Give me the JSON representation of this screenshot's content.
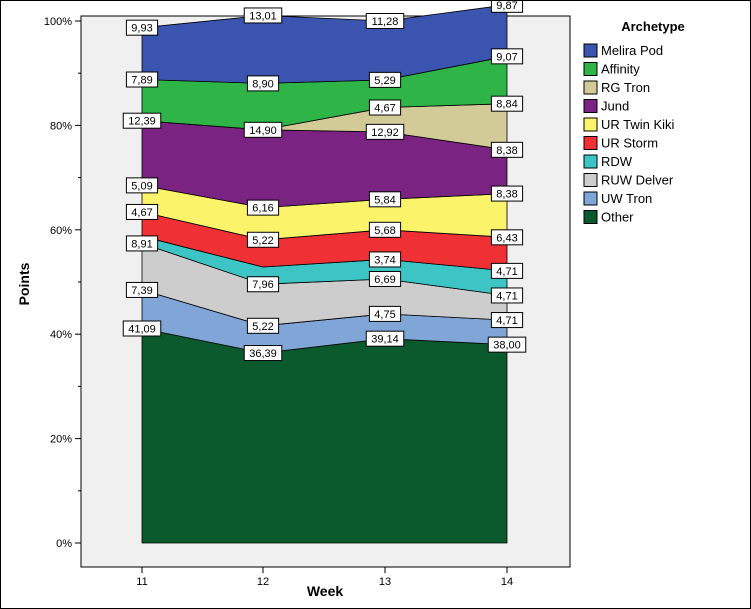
{
  "chart_data": {
    "type": "area",
    "stacked": true,
    "percent": true,
    "title": "",
    "xlabel": "Week",
    "ylabel": "Points",
    "x": [
      "11",
      "12",
      "13",
      "14"
    ],
    "ylim": [
      0,
      100
    ],
    "yticks": [
      "0%",
      "20%",
      "40%",
      "60%",
      "80%",
      "100%"
    ],
    "legend_title": "Archetype",
    "legend_position": "right",
    "series": [
      {
        "name": "Other",
        "color": "#0b5a2e",
        "values": [
          41.09,
          36.39,
          39.14,
          38.0
        ],
        "labels": [
          "41,09",
          "36,39",
          "39,14",
          "38,00"
        ]
      },
      {
        "name": "UW Tron",
        "color": "#7fa6d6",
        "values": [
          7.39,
          5.22,
          4.75,
          4.71
        ],
        "labels": [
          "7,39",
          "5,22",
          "4,75",
          "4,71"
        ]
      },
      {
        "name": "RUW Delver",
        "color": "#cdcdcd",
        "values": [
          8.91,
          7.96,
          6.69,
          4.71
        ],
        "labels": [
          "8,91",
          "7,96",
          "6,69",
          "4,71"
        ]
      },
      {
        "name": "RDW",
        "color": "#3dc5c5",
        "values": [
          1.36,
          3.3,
          3.74,
          4.71
        ],
        "labels": [
          "",
          "",
          "3,74",
          "4,71"
        ]
      },
      {
        "name": "UR Storm",
        "color": "#ef3135",
        "values": [
          4.67,
          5.22,
          5.68,
          6.43
        ],
        "labels": [
          "4,67",
          "5,22",
          "5,68",
          "6,43"
        ]
      },
      {
        "name": "UR Twin Kiki",
        "color": "#fbf46a",
        "values": [
          5.09,
          6.16,
          5.84,
          8.38
        ],
        "labels": [
          "5,09",
          "6,16",
          "5,84",
          "8,38"
        ]
      },
      {
        "name": "Jund",
        "color": "#7a2383",
        "values": [
          12.39,
          14.9,
          12.92,
          8.38
        ],
        "labels": [
          "12,39",
          "14,90",
          "12,92",
          "8,38"
        ]
      },
      {
        "name": "RG Tron",
        "color": "#d2cb97",
        "values": [
          0,
          0,
          4.67,
          8.84
        ],
        "labels": [
          "",
          "",
          "4,67",
          "8,84"
        ]
      },
      {
        "name": "Affinity",
        "color": "#2fb547",
        "values": [
          7.89,
          8.9,
          5.29,
          9.07
        ],
        "labels": [
          "7,89",
          "8,90",
          "5,29",
          "9,07"
        ]
      },
      {
        "name": "Melira Pod",
        "color": "#3a54b0",
        "values": [
          9.93,
          13.01,
          11.28,
          9.87
        ],
        "labels": [
          "9,93",
          "13,01",
          "11,28",
          "9,87"
        ]
      }
    ],
    "legend_order": [
      "Melira Pod",
      "Affinity",
      "RG Tron",
      "Jund",
      "UR Twin Kiki",
      "UR Storm",
      "RDW",
      "RUW Delver",
      "UW Tron",
      "Other"
    ],
    "plot_background": "#f0f0f0",
    "grid": false
  }
}
